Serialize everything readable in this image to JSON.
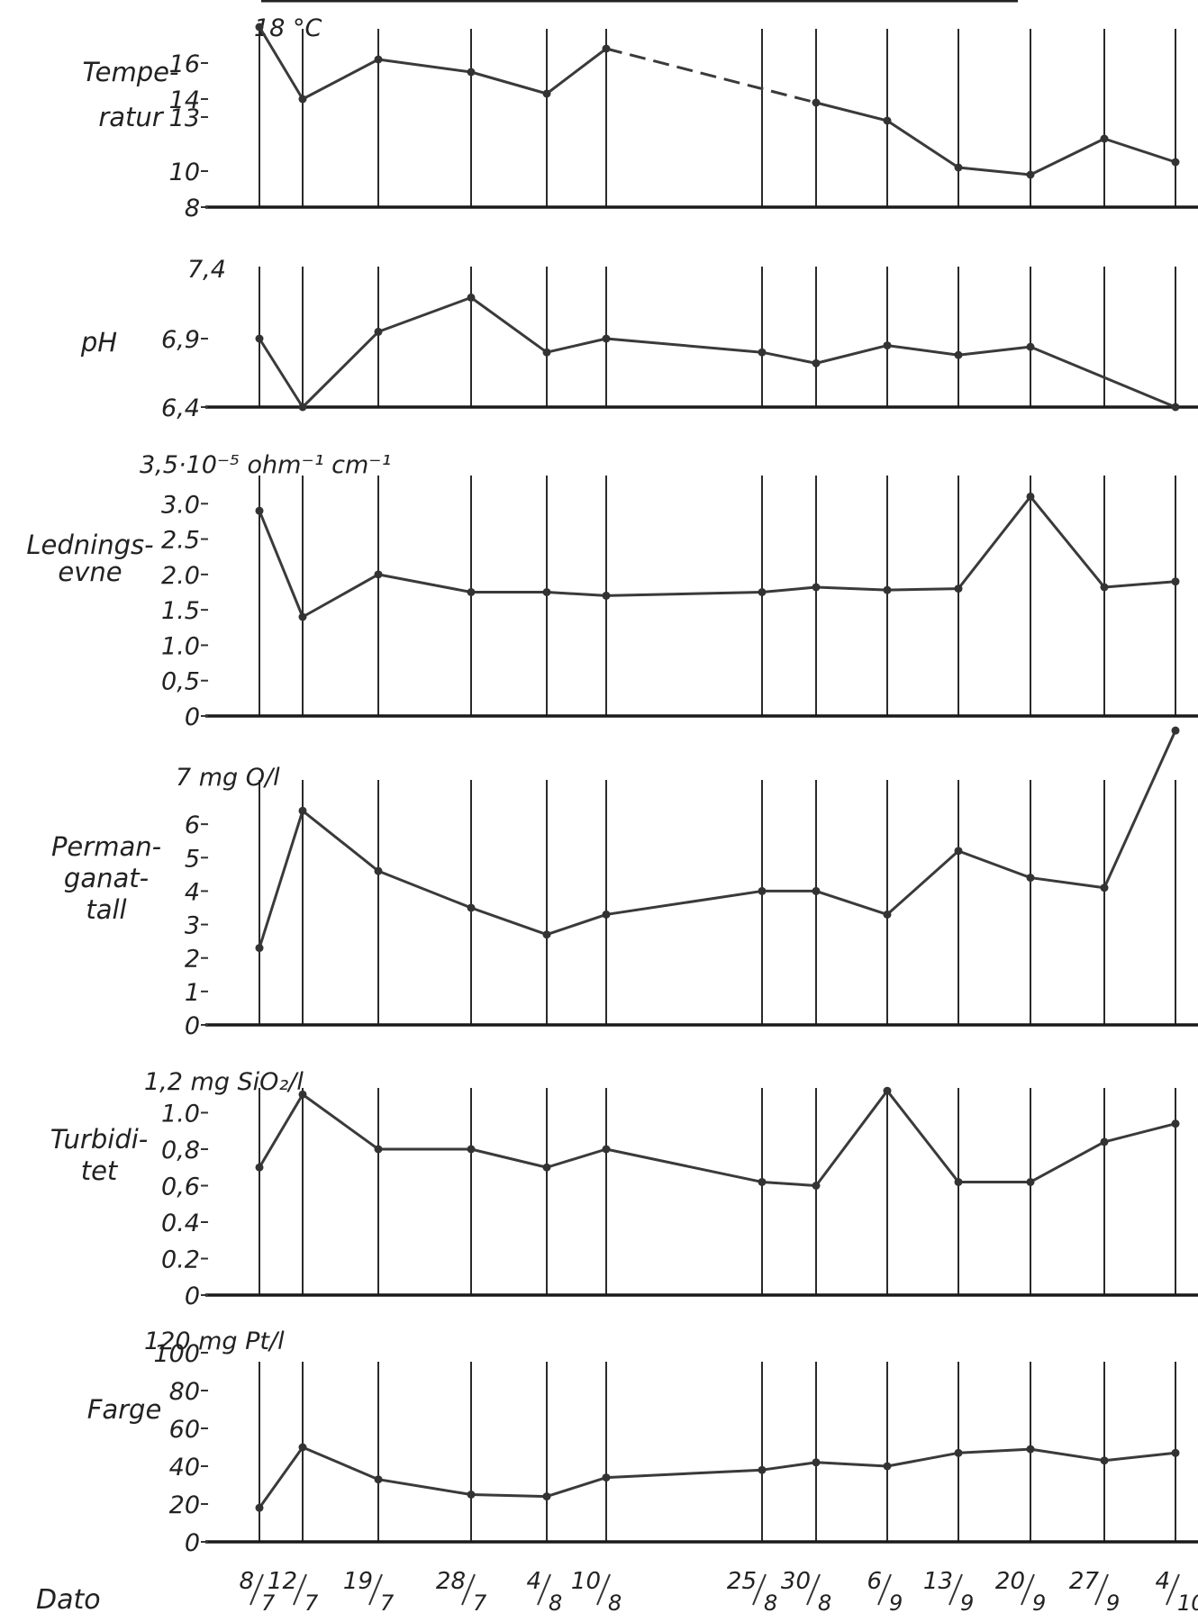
{
  "chart_data": [
    {
      "type": "line",
      "ylabel": [
        "Tempe-",
        "ratur"
      ],
      "unit_label": "18 °C",
      "yticks": [
        "8",
        "10",
        "13",
        "14",
        "16"
      ],
      "ylim": [
        8,
        18
      ],
      "x": [
        "8/7",
        "12/7",
        "19/7",
        "28/7",
        "4/8",
        "10/8",
        "25/8",
        "30/8",
        "6/9",
        "13/9",
        "20/9",
        "27/9",
        "4/10"
      ],
      "values": [
        18,
        14,
        16.2,
        15.5,
        14.3,
        16.8,
        null,
        13.8,
        12.8,
        10.2,
        9.8,
        11.8,
        10.5
      ],
      "dashed_segment": [
        "10/8",
        "30/8"
      ]
    },
    {
      "type": "line",
      "ylabel": [
        "pH"
      ],
      "unit_label": "7,4",
      "yticks": [
        "6,4",
        "6,9"
      ],
      "ylim": [
        6.4,
        7.4
      ],
      "x": [
        "8/7",
        "12/7",
        "19/7",
        "28/7",
        "4/8",
        "10/8",
        "25/8",
        "30/8",
        "6/9",
        "13/9",
        "20/9",
        "27/9",
        "4/10"
      ],
      "values": [
        6.9,
        6.4,
        6.95,
        7.2,
        6.8,
        6.9,
        6.8,
        6.72,
        6.85,
        6.78,
        6.84,
        null,
        6.4
      ]
    },
    {
      "type": "line",
      "ylabel": [
        "Lednings-",
        "evne"
      ],
      "unit_label": "3,5·10⁻⁵ ohm⁻¹ cm⁻¹",
      "yticks": [
        "0",
        "0,5",
        "1.0",
        "1.5",
        "2.0",
        "2.5",
        "3.0"
      ],
      "ylim": [
        0,
        3.5
      ],
      "x": [
        "8/7",
        "12/7",
        "19/7",
        "28/7",
        "4/8",
        "10/8",
        "25/8",
        "30/8",
        "6/9",
        "13/9",
        "20/9",
        "27/9",
        "4/10"
      ],
      "values": [
        2.9,
        1.4,
        2.0,
        1.75,
        1.75,
        1.7,
        1.75,
        1.82,
        1.78,
        1.8,
        3.1,
        1.82,
        1.9
      ]
    },
    {
      "type": "line",
      "ylabel": [
        "Perman-",
        "ganat-",
        "tall"
      ],
      "unit_label": "7 mg O/l",
      "yticks": [
        "0",
        "1",
        "2",
        "3",
        "4",
        "5",
        "6"
      ],
      "ylim": [
        0,
        7
      ],
      "x": [
        "8/7",
        "12/7",
        "19/7",
        "28/7",
        "4/8",
        "10/8",
        "25/8",
        "30/8",
        "6/9",
        "13/9",
        "20/9",
        "27/9",
        "4/10"
      ],
      "values": [
        2.3,
        6.4,
        4.6,
        3.5,
        2.7,
        3.3,
        4.0,
        4.0,
        3.3,
        5.2,
        4.4,
        4.1,
        8.8
      ]
    },
    {
      "type": "line",
      "ylabel": [
        "Turbidi-",
        "tet"
      ],
      "unit_label": "1,2 mg SiO₂/l",
      "yticks": [
        "0",
        "0.2",
        "0.4",
        "0,6",
        "0,8",
        "1.0"
      ],
      "ylim": [
        0,
        1.2
      ],
      "x": [
        "8/7",
        "12/7",
        "19/7",
        "28/7",
        "4/8",
        "10/8",
        "25/8",
        "30/8",
        "6/9",
        "13/9",
        "20/9",
        "27/9",
        "4/10"
      ],
      "values": [
        0.7,
        1.1,
        0.8,
        0.8,
        0.7,
        0.8,
        0.62,
        0.6,
        1.12,
        0.62,
        0.62,
        0.84,
        0.94
      ]
    },
    {
      "type": "line",
      "ylabel": [
        "Farge"
      ],
      "unit_label": "120 mg Pt/l",
      "yticks": [
        "0",
        "20",
        "40",
        "60",
        "80",
        "100"
      ],
      "ylim": [
        0,
        120
      ],
      "x": [
        "8/7",
        "12/7",
        "19/7",
        "28/7",
        "4/8",
        "10/8",
        "25/8",
        "30/8",
        "6/9",
        "13/9",
        "20/9",
        "27/9",
        "4/10"
      ],
      "values": [
        18,
        50,
        33,
        25,
        24,
        34,
        38,
        42,
        40,
        47,
        49,
        43,
        47
      ]
    }
  ],
  "xaxis": {
    "label": "Dato",
    "dates": [
      {
        "n": "8",
        "d": "7"
      },
      {
        "n": "12",
        "d": "7"
      },
      {
        "n": "19",
        "d": "7"
      },
      {
        "n": "28",
        "d": "7"
      },
      {
        "n": "4",
        "d": "8"
      },
      {
        "n": "10",
        "d": "8"
      },
      {
        "n": "25",
        "d": "8"
      },
      {
        "n": "30",
        "d": "8"
      },
      {
        "n": "6",
        "d": "9"
      },
      {
        "n": "13",
        "d": "9"
      },
      {
        "n": "20",
        "d": "9"
      },
      {
        "n": "27",
        "d": "9"
      },
      {
        "n": "4",
        "d": "10"
      }
    ]
  }
}
